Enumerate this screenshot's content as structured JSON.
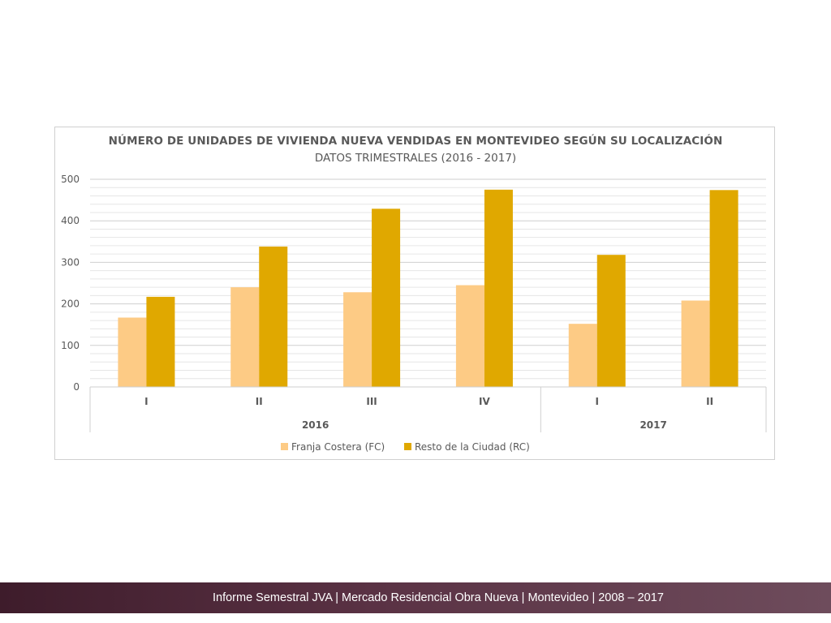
{
  "chart_data": {
    "type": "bar",
    "title": "NÚMERO DE UNIDADES DE VIVIENDA NUEVA VENDIDAS EN MONTEVIDEO SEGÚN SU LOCALIZACIÓN",
    "subtitle": "DATOS TRIMESTRALES (2016 - 2017)",
    "categories": [
      "I",
      "II",
      "III",
      "IV",
      "I",
      "II"
    ],
    "groups": [
      {
        "label": "2016",
        "count": 4
      },
      {
        "label": "2017",
        "count": 2
      }
    ],
    "series": [
      {
        "name": "Franja Costera (FC)",
        "color": "#fdcb85",
        "values": [
          167,
          240,
          228,
          245,
          152,
          208
        ]
      },
      {
        "name": "Resto de la Ciudad (RC)",
        "color": "#e0a800",
        "values": [
          217,
          338,
          429,
          475,
          318,
          474
        ]
      }
    ],
    "ylim": [
      0,
      500
    ],
    "yticks": [
      0,
      100,
      200,
      300,
      400,
      500
    ],
    "xlabel": "",
    "ylabel": "",
    "grid": true,
    "minor_grid": true,
    "legend": "bottom-center"
  },
  "footer": {
    "text": "Informe Semestral JVA | Mercado Residencial Obra Nueva | Montevideo | 2008 – 2017"
  }
}
